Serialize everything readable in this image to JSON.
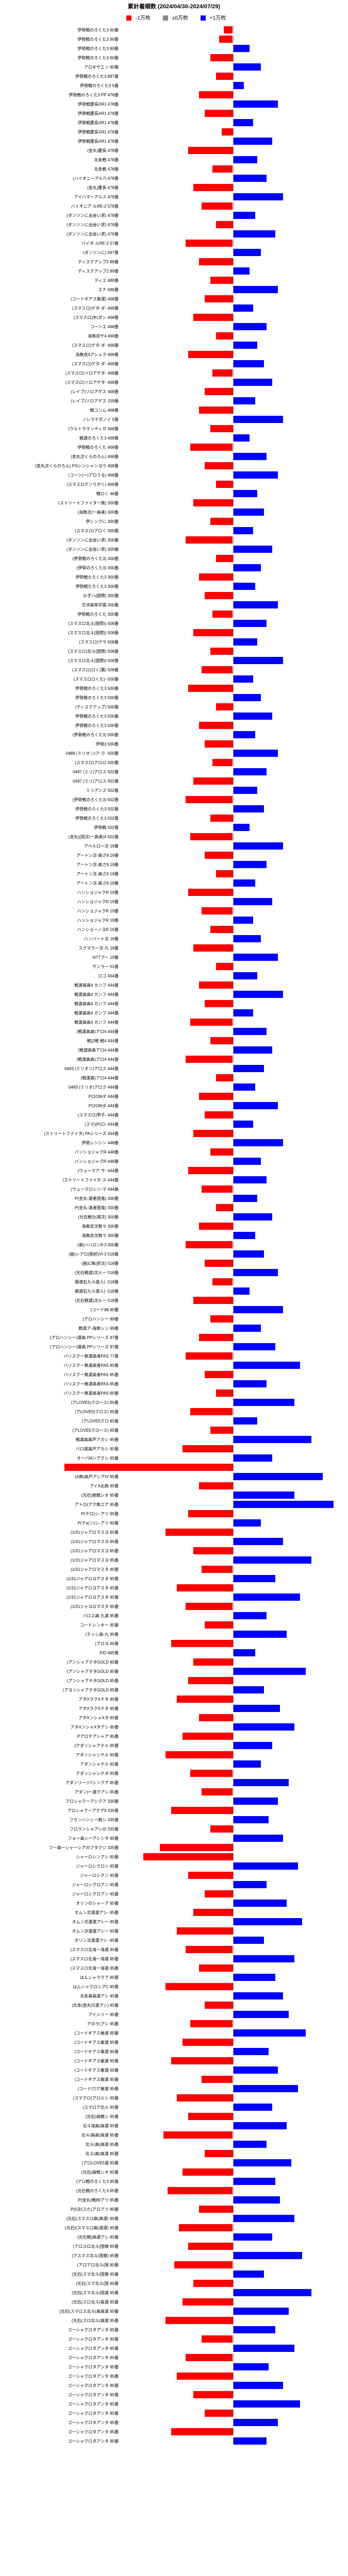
{
  "title": "累計着順数 (2024/04/30-2024/07/29)",
  "legend": [
    {
      "label": "-1万枚",
      "color": "#ff0000"
    },
    {
      "label": "±0万枚",
      "color": "#888888"
    },
    {
      "label": "+1万枚",
      "color": "#0000ff"
    }
  ],
  "axis_range": 200,
  "background": "#ffffff",
  "rows": [
    {
      "l": "伊勢戦のろくた3 90番",
      "v": -8
    },
    {
      "l": "伊勢戦のろくた3 90番",
      "v": -12
    },
    {
      "l": "伊勢戦のろくた3 90番",
      "v": 15
    },
    {
      "l": "伊勢戦のろくた3 90番",
      "v": -20
    },
    {
      "l": "アロギサエン 90番",
      "v": 25
    },
    {
      "l": "伊勢戦のろくた3 897番",
      "v": -15
    },
    {
      "l": "伊勢戦のろくた3 5番",
      "v": 10
    },
    {
      "l": "伊勢戦のろくた3 PP 478番",
      "v": -30
    },
    {
      "l": "伊勢戦慶長XR1 478番",
      "v": 40
    },
    {
      "l": "伊勢戦慶長XR1 478番",
      "v": -25
    },
    {
      "l": "伊勢戦慶長XR1 478番",
      "v": 18
    },
    {
      "l": "伊勢戦慶長XR1 478番",
      "v": -10
    },
    {
      "l": "伊勢戦慶長XR1 478番",
      "v": 35
    },
    {
      "l": "(金丸)慶長 478番",
      "v": -40
    },
    {
      "l": "北条戦 478番",
      "v": 22
    },
    {
      "l": "北条戦 478番",
      "v": -18
    },
    {
      "l": "(ハイオニーアル7) 478番",
      "v": 30
    },
    {
      "l": "(金丸)慶長 478番",
      "v": -35
    },
    {
      "l": "アイハマーアルス 478番",
      "v": 45
    },
    {
      "l": "バイオニア-ルRE-2 578番",
      "v": -28
    },
    {
      "l": "(ダンソンに出会い求) 478番",
      "v": 20
    },
    {
      "l": "(ダンソンに出会い求) 478番",
      "v": -15
    },
    {
      "l": "(ダンソンに出会い求) 476番",
      "v": 38
    },
    {
      "l": "バイオ-ルRE-2 57番",
      "v": -42
    },
    {
      "l": "(ダンソンに) 597番",
      "v": 25
    },
    {
      "l": "ディスクアップ2 89番",
      "v": -30
    },
    {
      "l": "ディスクアップ2 89番",
      "v": 15
    },
    {
      "l": "ディエ 688番",
      "v": -20
    },
    {
      "l": "エナ 686番",
      "v": 40
    },
    {
      "l": "(コードギアス敢選) 468番",
      "v": -25
    },
    {
      "l": "(スマスロ)ゲタ-ダ- 468番",
      "v": 18
    },
    {
      "l": "(スマスロ)木(ダン 468番",
      "v": -35
    },
    {
      "l": "コーンエ 468番",
      "v": 30
    },
    {
      "l": "海無双サ4 468番",
      "v": -15
    },
    {
      "l": "(スマスロ)ゲタ-ダ- 468番",
      "v": 22
    },
    {
      "l": "海無双4アシュラ 468番",
      "v": -40
    },
    {
      "l": "(スマスロ)ゲタ-ダ- 468番",
      "v": 28
    },
    {
      "l": "(スマスロ)ソロアゲタ- 468番",
      "v": -18
    },
    {
      "l": "(スマスロ)ソロアゲタ- 468番",
      "v": 35
    },
    {
      "l": "(レイブ)ソロアゲス 468番",
      "v": -25
    },
    {
      "l": "(レイブ)ソロアゲス 159番",
      "v": 20
    },
    {
      "l": "戦コンム 468番",
      "v": -30
    },
    {
      "l": "ノレラデポノイ 5番",
      "v": 45
    },
    {
      "l": "(ウルトラマンティガ 468番",
      "v": -20
    },
    {
      "l": "戦選のろくた3 468番",
      "v": 15
    },
    {
      "l": "伊勢戦のろくた 468番",
      "v": -38
    },
    {
      "l": "(金丸次くらのろん) 468番",
      "v": 30
    },
    {
      "l": "(金丸次くらのろん) PSシンシャンヨウ 468番",
      "v": -25
    },
    {
      "l": "(コーン(ー)アロうる) 468番",
      "v": 40
    },
    {
      "l": "(スマスロデンりがく) 468番",
      "v": -15
    },
    {
      "l": "戦ロく 46番",
      "v": 22
    },
    {
      "l": "(ストリートファイター無) 300番",
      "v": -35
    },
    {
      "l": "(海無次(一高者) 300番",
      "v": 28
    },
    {
      "l": "伊シンクに 300番",
      "v": -20
    },
    {
      "l": "(スマスロ)アロく 300番",
      "v": 18
    },
    {
      "l": "(ダンソンに出会い求) 300番",
      "v": -42
    },
    {
      "l": "(ダンソンに出会い求) 300番",
      "v": 35
    },
    {
      "l": "(伊勢戦のろくた3) 300番",
      "v": -15
    },
    {
      "l": "(伊勢のろくた3) 300番",
      "v": 25
    },
    {
      "l": "伊勢戦たろくた3 300番",
      "v": -30
    },
    {
      "l": "伊勢戦たろくた3 300番",
      "v": 20
    },
    {
      "l": "かぎハ(国際) 300番",
      "v": -25
    },
    {
      "l": "交渉高等学園 300番",
      "v": 40
    },
    {
      "l": "伊勢戦のろくた 300番",
      "v": -18
    },
    {
      "l": "(スマスロ北斗(国際)) 508番",
      "v": 30
    },
    {
      "l": "(スマスロ北斗(国際)) 508番",
      "v": -35
    },
    {
      "l": "(スマスロ)ヴラ 508番",
      "v": 22
    },
    {
      "l": "(スマスロ)北斗(国際) 508番",
      "v": -20
    },
    {
      "l": "(スマスロ北斗(国際)) 508番",
      "v": 45
    },
    {
      "l": "(スマスロ)ロく(票) 508番",
      "v": -28
    },
    {
      "l": "(スマスロロくた)- 500番",
      "v": 18
    },
    {
      "l": "伊勢戦のろくた3 500番",
      "v": -40
    },
    {
      "l": "伊勢戦のろくた3 500番",
      "v": 25
    },
    {
      "l": "(ディスクアップ) 500番",
      "v": -15
    },
    {
      "l": "伊勢戦のろくた3 500番",
      "v": 35
    },
    {
      "l": "伊勢戦のろくた3 500番",
      "v": -30
    },
    {
      "l": "(伊勢戦のろくた3) 500番",
      "v": 20
    },
    {
      "l": "伊勢3 500番",
      "v": -25
    },
    {
      "l": "0489 (ミリオン)ア-ク- 500番",
      "v": 40
    },
    {
      "l": "(スマスロ)アロロ 500番",
      "v": -18
    },
    {
      "l": "0497 (ミリ)アロス 502番",
      "v": 30
    },
    {
      "l": "0497 (ミリ)アロス 502番",
      "v": -35
    },
    {
      "l": "ミリアンズ 502番",
      "v": 22
    },
    {
      "l": "(伊勢戦のろくた3) 502番",
      "v": -42
    },
    {
      "l": "伊勢戦のろくた3 502番",
      "v": 28
    },
    {
      "l": "伊勢戦のろくた3 502番",
      "v": -20
    },
    {
      "l": "伊勢戦 502番",
      "v": 15
    },
    {
      "l": "(金丸)(国次(一高者)4 502番",
      "v": -38
    },
    {
      "l": "アベルロー次 19番",
      "v": 45
    },
    {
      "l": "アートン次-高さ9 19番",
      "v": -25
    },
    {
      "l": "アートン次-高さ9 19番",
      "v": 30
    },
    {
      "l": "アートン次-高さ9 19番",
      "v": -15
    },
    {
      "l": "アートン次-高さ9 19番",
      "v": 20
    },
    {
      "l": "ハンショジャクR 19番",
      "v": -40
    },
    {
      "l": "ハンショジャクR 19番",
      "v": 35
    },
    {
      "l": "ハンショジャクR 19番",
      "v": -28
    },
    {
      "l": "ハンショジャクR 19番",
      "v": 18
    },
    {
      "l": "ハンショーノヨR 16番",
      "v": -20
    },
    {
      "l": "ハンバート次 16番",
      "v": 25
    },
    {
      "l": "スグマラー次-九 19番",
      "v": -35
    },
    {
      "l": "NTTアー 19番",
      "v": 40
    },
    {
      "l": "サンラー 51番",
      "v": -15
    },
    {
      "l": "ロコ 454番",
      "v": 22
    },
    {
      "l": "戦選高高4 カンフ 444番",
      "v": -30
    },
    {
      "l": "戦選高高4 カンフ 444番",
      "v": 45
    },
    {
      "l": "戦選高高4 カンフ 444番",
      "v": -25
    },
    {
      "l": "戦選高高4 カンフ 444番",
      "v": 18
    },
    {
      "l": "戦選高高4 カンフ 444番",
      "v": -38
    },
    {
      "l": "(戦選高高)アロ4 444番",
      "v": 30
    },
    {
      "l": "戦)2戦 戦4 444番",
      "v": -20
    },
    {
      "l": "(戦選高高アロ4 444番",
      "v": 35
    },
    {
      "l": "(戦選高高)アロ4 444番",
      "v": -42
    },
    {
      "l": "0493 (ミリオン)アロス 444番",
      "v": 28
    },
    {
      "l": "(戦選高)アロ4 444番",
      "v": -15
    },
    {
      "l": "0483 (ミリオ)アロク 444番",
      "v": 20
    },
    {
      "l": "Pロ036ダ 444番",
      "v": -30
    },
    {
      "l": "Pロ036ダ 444番",
      "v": 40
    },
    {
      "l": "(スマスロ)甲子- 444番",
      "v": -25
    },
    {
      "l": "(スマ)(P)ロ- 444番",
      "v": 18
    },
    {
      "l": "(ストリートファイタ) PAシリーズ 444番",
      "v": -35
    },
    {
      "l": "伊勢シンシン 448番",
      "v": 45
    },
    {
      "l": "パンショジャクR 448番",
      "v": -20
    },
    {
      "l": "パンショジャクR 448番",
      "v": 25
    },
    {
      "l": "(ウューマア-サ- 444番",
      "v": -40
    },
    {
      "l": "(ストリートファイタ-ス 444番",
      "v": 30
    },
    {
      "l": "(ウューマロシン-マ 444番",
      "v": -28
    },
    {
      "l": "P(金丸-選者国鬼) 300番",
      "v": 22
    },
    {
      "l": "P(金丸-選者国鬼) 300番",
      "v": -15
    },
    {
      "l": "(光石戦3)(選次) 300番",
      "v": 35
    },
    {
      "l": "海無双次無マ 300番",
      "v": -30
    },
    {
      "l": "海無双次無マ 300番",
      "v": 20
    },
    {
      "l": "(歯)ハハロンⅡ-3 300番",
      "v": -42
    },
    {
      "l": "(歯)シアロ(国択)VI-3 518番",
      "v": 28
    },
    {
      "l": "(歯)C無(択次) 518番",
      "v": -25
    },
    {
      "l": "(光石戦選)次ルー 518番",
      "v": 40
    },
    {
      "l": "開選石九斗選人(- 518番",
      "v": -18
    },
    {
      "l": "開選石九斗選人(- 518番",
      "v": 15
    },
    {
      "l": "(光石戦選)次ルー 518番",
      "v": -35
    },
    {
      "l": "(コード88 80番",
      "v": 45
    },
    {
      "l": "(アロハンシー 89番",
      "v": -20
    },
    {
      "l": "戦選ア-海無シン 89番",
      "v": 25
    },
    {
      "l": "(アロハンシー)選高 PPシリーズ 87番",
      "v": -30
    },
    {
      "l": "(アロハンシー)選高 PPシリーズ 87番",
      "v": 38
    },
    {
      "l": "バリスクー無選高者PAS 77番",
      "v": -42
    },
    {
      "l": "バリスクー無選高者PAS 85番",
      "v": 60
    },
    {
      "l": "バリスクー無選高者PAS 85番",
      "v": -25
    },
    {
      "l": "バリスクー無選高者PAS 85番",
      "v": 30
    },
    {
      "l": "バリスクー無選高者PAS 85番",
      "v": -15
    },
    {
      "l": "(アLOVE5(クロース) 85番",
      "v": 55
    },
    {
      "l": "(アLOVE5(クロス) 85番",
      "v": -38
    },
    {
      "l": "(アLOVE5クロ 85番",
      "v": 22
    },
    {
      "l": "(アLOVE5クロース) 85番",
      "v": -20
    },
    {
      "l": "戦選高高戸アカシ 85番",
      "v": 70
    },
    {
      "l": "バロ選高戸アカシ 85番",
      "v": -45
    },
    {
      "l": "オーバMンアクシ 85番",
      "v": 35
    },
    {
      "l": "(アベロ)高-アヲシティ 85番",
      "v": -150
    },
    {
      "l": "(A無)高戸アシアIV 85番",
      "v": 80
    },
    {
      "l": "アイA北無 85番",
      "v": -30
    },
    {
      "l": "(光石)無戦シオ 85番",
      "v": 55
    },
    {
      "l": "アトロ(アク無エア 85番",
      "v": 90
    },
    {
      "l": "P(テロ)シ-アツ 85番",
      "v": -40
    },
    {
      "l": "P(テa(ン)シ-アツ 85番",
      "v": 25
    },
    {
      "l": "(1/31ジャアロマスヨ 85番",
      "v": -60
    },
    {
      "l": "(1/31ジャアロマスヨ 85番",
      "v": 45
    },
    {
      "l": "(1/31ジャアロマスヨ 85番",
      "v": -35
    },
    {
      "l": "(1/31ジャアロマスヨ 85番",
      "v": 70
    },
    {
      "l": "(1/31ジャアロマスタ 85番",
      "v": -28
    },
    {
      "l": "(1/31ジャアロヨアスタ 85番",
      "v": 38
    },
    {
      "l": "(1/31ジャアロヨアスタ 85番",
      "v": -50
    },
    {
      "l": "(1/31ジャアロヨアスタ 85番",
      "v": 60
    },
    {
      "l": "(1/31ジャヨロマスタ 85番",
      "v": -42
    },
    {
      "l": "バロス高-九選 85番",
      "v": 30
    },
    {
      "l": "コードシンキー 85番",
      "v": -25
    },
    {
      "l": "(テッシ高-九 85番",
      "v": 48
    },
    {
      "l": "(アロヨ 85番",
      "v": -55
    },
    {
      "l": "P/D 685番",
      "v": 20
    },
    {
      "l": "(アンシャアテタGOLD 85番",
      "v": -35
    },
    {
      "l": "(アンシャアテタGOLD 85番",
      "v": 65
    },
    {
      "l": "(アンシャアテタGOLD 85番",
      "v": -40
    },
    {
      "l": "(アヨンシャアテタGOLD 85番",
      "v": 28
    },
    {
      "l": "アタXラクXテタ 85番",
      "v": -50
    },
    {
      "l": "アタXラクXテタ 85番",
      "v": 42
    },
    {
      "l": "アタXンシャXタ 85番",
      "v": -30
    },
    {
      "l": "アタXンシャXタアシ 85番",
      "v": 55
    },
    {
      "l": "Pアロテアシャア 85番",
      "v": -45
    },
    {
      "l": "(アダンシャアテル 85番",
      "v": 35
    },
    {
      "l": "アダンシャシテル 85番",
      "v": -60
    },
    {
      "l": "アダンシャテル 85番",
      "v": 25
    },
    {
      "l": "アダンシャシテダ 85番",
      "v": -38
    },
    {
      "l": "アダンリージ7シンクア 85番",
      "v": 50
    },
    {
      "l": "アダン)ー選クアシ 85番",
      "v": -28
    },
    {
      "l": "アロシャクーアシクア 335番",
      "v": 40
    },
    {
      "l": "アロシャクーアクア9 335番",
      "v": -55
    },
    {
      "l": "フランハンシー無シ 335番",
      "v": 32
    },
    {
      "l": "フロランシャアシの 335番",
      "v": -20
    },
    {
      "l": "フォー高シーアシンタ 85番",
      "v": 45
    },
    {
      "l": "フー高ーシャーシアのフタクジ 335番",
      "v": -65
    },
    {
      "l": "シャーロシンアシ 85番",
      "v": -80
    },
    {
      "l": "ジャーロシクロン 85番",
      "v": 58
    },
    {
      "l": "ジャーロシクン 85番",
      "v": -40
    },
    {
      "l": "ジャーロシクロアン 85番",
      "v": 30
    },
    {
      "l": "ジャーロシクロアン 85番",
      "v": -25
    },
    {
      "l": "オリンのシャーア 85番",
      "v": 48
    },
    {
      "l": "オムン次選選アシ- 85番",
      "v": -35
    },
    {
      "l": "オムン次選選アシー 85番",
      "v": 62
    },
    {
      "l": "オムン次選選アシー 85番",
      "v": -50
    },
    {
      "l": "オリン次選選アシ- 85番",
      "v": 28
    },
    {
      "l": "(スマスロ北海一海選 85番",
      "v": -42
    },
    {
      "l": "(スマスロ北海一海選 85番",
      "v": 55
    },
    {
      "l": "(スマスロ北海一海選 85番",
      "v": -30
    },
    {
      "l": "はんシャラクア 85番",
      "v": 38
    },
    {
      "l": "はんシャクロシアC 85番",
      "v": -60
    },
    {
      "l": "北条高高選アシ 85番",
      "v": 45
    },
    {
      "l": "(北条(金丸行選アシ) 85番",
      "v": -25
    },
    {
      "l": "アイシリー 85番",
      "v": 50
    },
    {
      "l": "アのラ(アシ 85番",
      "v": -38
    },
    {
      "l": "(コードギアス敢選 85番",
      "v": 65
    },
    {
      "l": "(コードギアス敢選 85番",
      "v": -45
    },
    {
      "l": "(コードギアス敢選 85番",
      "v": 32
    },
    {
      "l": "(コードギアス敢選 85番",
      "v": -55
    },
    {
      "l": "(コードギアス敢選 85番",
      "v": 40
    },
    {
      "l": "(コードギアス敢選 85番",
      "v": -28
    },
    {
      "l": "(コード(7)ア敢選 85番",
      "v": 58
    },
    {
      "l": "(スマクロ(アロルシ 85番",
      "v": -50
    },
    {
      "l": "(スマロア北ル 85番",
      "v": 35
    },
    {
      "l": "(光石)高戦シ 85番",
      "v": -40
    },
    {
      "l": "北斗海高(高選 85番",
      "v": 48
    },
    {
      "l": "北斗(高高(高選 85番",
      "v": -62
    },
    {
      "l": "北斗(高(高選 85番",
      "v": 30
    },
    {
      "l": "北斗)高(高選 85番",
      "v": -25
    },
    {
      "l": "(アロLOVE5選 85番",
      "v": 52
    },
    {
      "l": "(光石)高戦シオ 85番",
      "v": -45
    },
    {
      "l": "(アロ戦のろくた3 85番",
      "v": 38
    },
    {
      "l": "(光石戦のろくた3 85番",
      "v": -58
    },
    {
      "l": "P(金丸)戦89アツ 85番",
      "v": 42
    },
    {
      "l": "P(0次(スた)アロアツ 85番",
      "v": -30
    },
    {
      "l": "(光石(スマスロ高(高選) 85番",
      "v": 55
    },
    {
      "l": "(光石)(スマスロ高(選選) 85番",
      "v": -48
    },
    {
      "l": "(光石戦)高選アシ 85番",
      "v": 35
    },
    {
      "l": "(アロスロ北斗(国察 85番",
      "v": -40
    },
    {
      "l": "(アスマス北斗(国察) 85番",
      "v": 62
    },
    {
      "l": "(アロアロ北斗(国 85番",
      "v": -52
    },
    {
      "l": "(光石(スマ北斗(国察 85番",
      "v": 28
    },
    {
      "l": "(光石(スマ北斗(国 85番",
      "v": -35
    },
    {
      "l": "(光石(スマ北斗(国選 85番",
      "v": 70
    },
    {
      "l": "(光石(スロ北斗(高選 85番",
      "v": -45
    },
    {
      "l": "(光石(スマロス北斗(高高選 85番",
      "v": 50
    },
    {
      "l": "(光石(スロ北斗(高選 85番",
      "v": -60
    },
    {
      "l": "ゴーシャクロタアンタ 85番",
      "v": 38
    },
    {
      "l": "ゴーシャクロタアンタ 85番",
      "v": -28
    },
    {
      "l": "ゴーシャクロタアンタ 85番",
      "v": 55
    },
    {
      "l": "ゴーシャクロタアンタ 85番",
      "v": -42
    },
    {
      "l": "ゴーシャクロタアンタ 85番",
      "v": 32
    },
    {
      "l": "ゴーシャクロタアンタ 85番",
      "v": -50
    },
    {
      "l": "ゴーシャクロタアンタ 85番",
      "v": 45
    },
    {
      "l": "ゴーシャクロタアンタ 85番",
      "v": -35
    },
    {
      "l": "ゴーシャクロタアンタ 85番",
      "v": 60
    },
    {
      "l": "ゴーシャクロタアンタ 85番",
      "v": -25
    },
    {
      "l": "ゴーシャクロタアンタ 85番",
      "v": 40
    },
    {
      "l": "ゴーシャクロタアンタ 85番",
      "v": -55
    },
    {
      "l": "ゴーシャクロタアンタ 85番",
      "v": 30
    }
  ]
}
